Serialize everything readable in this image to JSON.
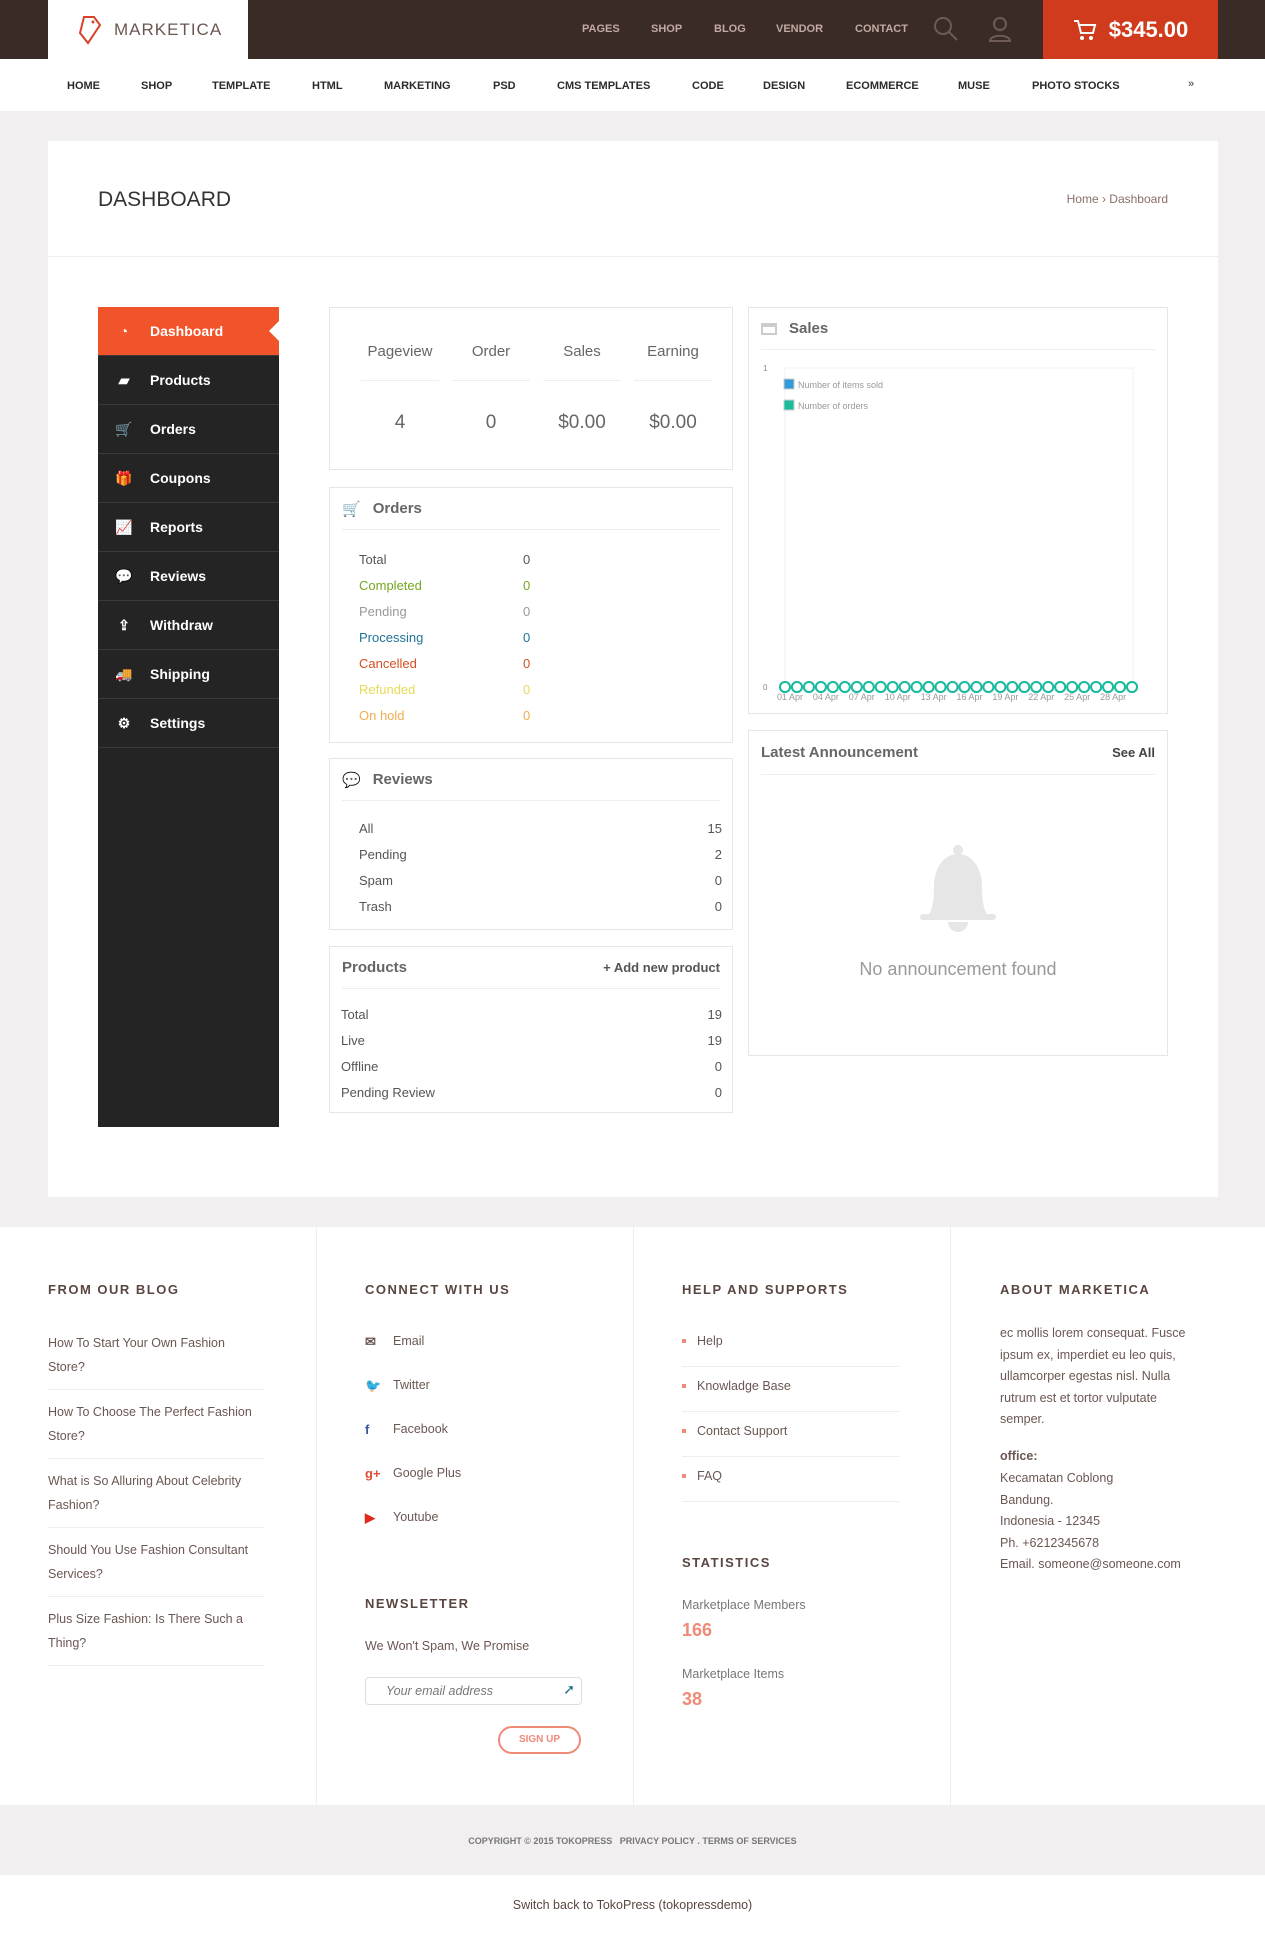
{
  "header": {
    "logo": "MARKETICA",
    "links": [
      "PAGES",
      "SHOP",
      "BLOG",
      "VENDOR",
      "CONTACT"
    ],
    "cart_total": "$345.00"
  },
  "nav": [
    "HOME",
    "SHOP",
    "TEMPLATE",
    "HTML",
    "MARKETING",
    "PSD",
    "CMS TEMPLATES",
    "CODE",
    "DESIGN",
    "ECOMMERCE",
    "MUSE",
    "PHOTO STOCKS"
  ],
  "page": {
    "title": "DASHBOARD",
    "breadcrumb": "Home › Dashboard"
  },
  "sidebar": [
    {
      "label": "Dashboard",
      "icon": "dashboard-icon"
    },
    {
      "label": "Products",
      "icon": "briefcase-icon"
    },
    {
      "label": "Orders",
      "icon": "cart-icon"
    },
    {
      "label": "Coupons",
      "icon": "gift-icon"
    },
    {
      "label": "Reports",
      "icon": "chart-icon"
    },
    {
      "label": "Reviews",
      "icon": "comments-icon"
    },
    {
      "label": "Withdraw",
      "icon": "upload-icon"
    },
    {
      "label": "Shipping",
      "icon": "truck-icon"
    },
    {
      "label": "Settings",
      "icon": "gear-icon"
    }
  ],
  "stats": [
    {
      "label": "Pageview",
      "value": "4"
    },
    {
      "label": "Order",
      "value": "0"
    },
    {
      "label": "Sales",
      "value": "$0.00"
    },
    {
      "label": "Earning",
      "value": "$0.00"
    }
  ],
  "orders": {
    "title": "Orders",
    "rows": [
      {
        "label": "Total",
        "value": "0",
        "color": "#555555"
      },
      {
        "label": "Completed",
        "value": "0",
        "color": "#74a620"
      },
      {
        "label": "Pending",
        "value": "0",
        "color": "#999999"
      },
      {
        "label": "Processing",
        "value": "0",
        "color": "#21759b"
      },
      {
        "label": "Cancelled",
        "value": "0",
        "color": "#d54e21"
      },
      {
        "label": "Refunded",
        "value": "0",
        "color": "#e6db55"
      },
      {
        "label": "On hold",
        "value": "0",
        "color": "#f0ad4e"
      }
    ]
  },
  "reviews": {
    "title": "Reviews",
    "rows": [
      {
        "label": "All",
        "value": "15"
      },
      {
        "label": "Pending",
        "value": "2"
      },
      {
        "label": "Spam",
        "value": "0"
      },
      {
        "label": "Trash",
        "value": "0"
      }
    ]
  },
  "products": {
    "title": "Products",
    "add": "+ Add new product",
    "rows": [
      {
        "label": "Total",
        "value": "19"
      },
      {
        "label": "Live",
        "value": "19"
      },
      {
        "label": "Offline",
        "value": "0"
      },
      {
        "label": "Pending Review",
        "value": "0"
      }
    ]
  },
  "sales": {
    "title": "Sales"
  },
  "chart_data": {
    "type": "line",
    "x": [
      "01 Apr",
      "02 Apr",
      "03 Apr",
      "04 Apr",
      "05 Apr",
      "06 Apr",
      "07 Apr",
      "08 Apr",
      "09 Apr",
      "10 Apr",
      "11 Apr",
      "12 Apr",
      "13 Apr",
      "14 Apr",
      "15 Apr",
      "16 Apr",
      "17 Apr",
      "18 Apr",
      "19 Apr",
      "20 Apr",
      "21 Apr",
      "22 Apr",
      "23 Apr",
      "24 Apr",
      "25 Apr",
      "26 Apr",
      "27 Apr",
      "28 Apr",
      "29 Apr",
      "30 Apr"
    ],
    "tick_labels": [
      "01 Apr",
      "04 Apr",
      "07 Apr",
      "10 Apr",
      "13 Apr",
      "16 Apr",
      "19 Apr",
      "22 Apr",
      "25 Apr",
      "28 Apr"
    ],
    "y_ticks": [
      "0",
      "1"
    ],
    "ylim": [
      0,
      1
    ],
    "legend_placement": "top-left",
    "series": [
      {
        "name": "Number of items sold",
        "color": "#3498db",
        "values": [
          0,
          0,
          0,
          0,
          0,
          0,
          0,
          0,
          0,
          0,
          0,
          0,
          0,
          0,
          0,
          0,
          0,
          0,
          0,
          0,
          0,
          0,
          0,
          0,
          0,
          0,
          0,
          0,
          0,
          0
        ]
      },
      {
        "name": "Number of orders",
        "color": "#1abc9c",
        "values": [
          0,
          0,
          0,
          0,
          0,
          0,
          0,
          0,
          0,
          0,
          0,
          0,
          0,
          0,
          0,
          0,
          0,
          0,
          0,
          0,
          0,
          0,
          0,
          0,
          0,
          0,
          0,
          0,
          0,
          0
        ]
      }
    ]
  },
  "announcement": {
    "title": "Latest Announcement",
    "see_all": "See All",
    "empty": "No announcement found"
  },
  "footer": {
    "blog": {
      "title": "FROM OUR BLOG",
      "items": [
        "How To Start Your Own Fashion Store?",
        "How To Choose The Perfect Fashion Store?",
        "What is So Alluring About Celebrity Fashion?",
        "Should You Use Fashion Consultant Services?",
        "Plus Size Fashion: Is There Such a Thing?"
      ]
    },
    "connect": {
      "title": "CONNECT WITH US",
      "items": [
        {
          "label": "Email",
          "icon": "email-icon",
          "color": "#6b5752"
        },
        {
          "label": "Twitter",
          "icon": "twitter-icon",
          "color": "#2fa7e0"
        },
        {
          "label": "Facebook",
          "icon": "facebook-icon",
          "color": "#3b5998"
        },
        {
          "label": "Google Plus",
          "icon": "google-plus-icon",
          "color": "#dd4b39"
        },
        {
          "label": "Youtube",
          "icon": "youtube-icon",
          "color": "#e02a20"
        }
      ]
    },
    "newsletter": {
      "title": "NEWSLETTER",
      "text": "We Won't Spam, We Promise",
      "placeholder": "Your email address",
      "button": "SIGN UP"
    },
    "help": {
      "title": "HELP AND SUPPORTS",
      "items": [
        "Help",
        "Knowladge Base",
        "Contact Support",
        "FAQ"
      ]
    },
    "stats": {
      "title": "STATISTICS",
      "items": [
        {
          "label": "Marketplace Members",
          "value": "166"
        },
        {
          "label": "Marketplace Items",
          "value": "38"
        }
      ]
    },
    "about": {
      "title": "ABOUT MARKETICA",
      "text": "ec mollis lorem consequat. Fusce ipsum ex, imperdiet eu leo quis, ullamcorper egestas nisl. Nulla rutrum est et tortor vulputate semper.",
      "office_label": "office:",
      "lines": [
        "Kecamatan Coblong",
        "Bandung.",
        "Indonesia - 12345",
        "Ph. +6212345678",
        "Email. someone@someone.com"
      ]
    },
    "copyright": "COPYRIGHT © 2015 TOKOPRESS   PRIVACY POLICY . TERMS OF SERVICES",
    "switch_back": "Switch back to TokoPress (tokopressdemo)"
  }
}
